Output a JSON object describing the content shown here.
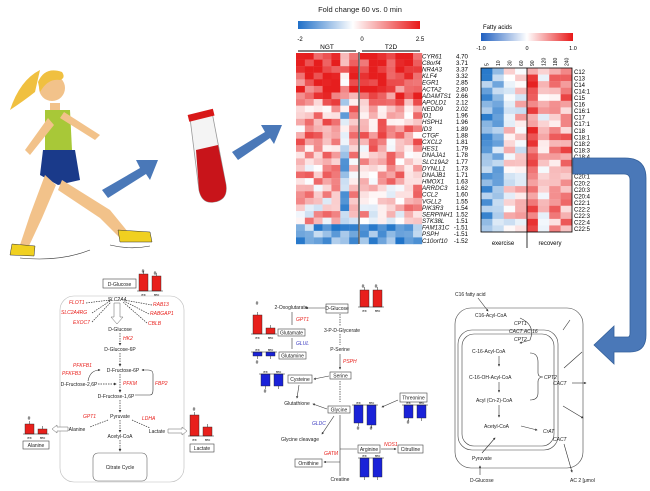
{
  "colors": {
    "up": "#e8201c",
    "down": "#2030e0",
    "arrow": "#4a78b8",
    "neutral": "#ffffff"
  },
  "gene_heatmap": {
    "title": "Fold change 60 vs. 0 min",
    "scale_labels": [
      "-2",
      "0",
      "2.5"
    ],
    "groups": [
      "NGT",
      "T2D"
    ],
    "rows": [
      {
        "gene": "CYR61",
        "fc": "4.70"
      },
      {
        "gene": "C8orf4",
        "fc": "3.71"
      },
      {
        "gene": "NR4A3",
        "fc": "3.37"
      },
      {
        "gene": "KLF4",
        "fc": "3.32"
      },
      {
        "gene": "EGR1",
        "fc": "2.85"
      },
      {
        "gene": "ACTA2",
        "fc": "2.80"
      },
      {
        "gene": "ADAMTS1",
        "fc": "2.66"
      },
      {
        "gene": "APOLD1",
        "fc": "2.12"
      },
      {
        "gene": "NEDD9",
        "fc": "2.02"
      },
      {
        "gene": "ID1",
        "fc": "1.96"
      },
      {
        "gene": "HSPH1",
        "fc": "1.96"
      },
      {
        "gene": "ID3",
        "fc": "1.89"
      },
      {
        "gene": "CTGF",
        "fc": "1.88"
      },
      {
        "gene": "CXCL2",
        "fc": "1.81"
      },
      {
        "gene": "HES1",
        "fc": "1.79"
      },
      {
        "gene": "DNAJA1",
        "fc": "1.78"
      },
      {
        "gene": "SLC19A2",
        "fc": "1.77"
      },
      {
        "gene": "DYNLL1",
        "fc": "1.73"
      },
      {
        "gene": "DNAJB1",
        "fc": "1.71"
      },
      {
        "gene": "HMOX1",
        "fc": "1.63"
      },
      {
        "gene": "ARRDC3",
        "fc": "1.62"
      },
      {
        "gene": "CCL2",
        "fc": "1.60"
      },
      {
        "gene": "VGLL2",
        "fc": "1.55"
      },
      {
        "gene": "PIK3R3",
        "fc": "1.54"
      },
      {
        "gene": "SERPINH1",
        "fc": "1.52"
      },
      {
        "gene": "STK38L",
        "fc": "1.51"
      },
      {
        "gene": "FAM131C",
        "fc": "-1.51"
      },
      {
        "gene": "PSPH",
        "fc": "-1.51"
      },
      {
        "gene": "C10orf10",
        "fc": "-1.52"
      }
    ]
  },
  "fatty_heatmap": {
    "title": "Fatty acids",
    "scale_labels": [
      "-1.0",
      "0",
      "1.0"
    ],
    "timepoints": [
      "5",
      "10",
      "30",
      "60",
      "90",
      "120",
      "180",
      "240"
    ],
    "groups": [
      "exercise",
      "recovery"
    ],
    "rows": [
      "C12",
      "C13",
      "C14",
      "C14:1",
      "C15",
      "C16",
      "C16:1",
      "C17",
      "C17:1",
      "C18",
      "C18:1",
      "C18:2",
      "C18:3",
      "C18:4",
      "",
      "C20",
      "C20:1",
      "C20:2",
      "C20:3",
      "C20:4",
      "C22:1",
      "C22:2",
      "C22:3",
      "C22:4",
      "C22:5"
    ]
  },
  "glycolysis": {
    "metabolites": {
      "glucose_box": "D-Glucose",
      "transporter": "SLC2A4",
      "glucose": "D-Glucose",
      "g6p": "D-Glucose-6P",
      "f6p": "D-Fructose-6P",
      "f26p": "D-Fructose-2,6P",
      "f16p": "D-Fructose-1,6P",
      "pyruvate": "Pyruvate",
      "alanine": "Alanine",
      "lactate": "Lactate",
      "acetyl": "Acetyl-CoA",
      "citrate": "Citrate Cycle",
      "alanine_box": "Alanine",
      "lactate_box": "Lactate"
    },
    "genes": {
      "flot1": "FLOT1",
      "slc2a4rg": "SLC2A4RG",
      "exoc7": "EXOC7",
      "rab13": "RAB13",
      "rabgap1": "RABGAP1",
      "cblb": "CBLB",
      "hk2": "HK2",
      "pfkfb1": "PFKFB1",
      "pfkfb3": "PFKFB3",
      "pfkm": "PFKM",
      "fbp2": "FBP2",
      "gpt1": "GPT1",
      "ldha": "LDHA"
    },
    "bar_labels": [
      "ex",
      "rec"
    ],
    "sig_mark": "#"
  },
  "amino": {
    "metabolites": {
      "glucose": "D-Glucose",
      "oxoglutarate": "2-Oxoglutarate",
      "glutamate": "Glutamate",
      "glutamine": "Glutamine",
      "pglycerate": "3-P-D-Glycerate",
      "pserine": "P-Serine",
      "serine": "Serine",
      "cysteine": "Cysteine",
      "glutathione": "Glutathione",
      "glycine": "Glycine",
      "threonine": "Threonine",
      "cleavage": "Glycine cleavage",
      "arginine": "Arginine",
      "citrulline": "Citrulline",
      "ornithine": "Ornithine",
      "creatine": "Creatine"
    },
    "genes": {
      "gpt1": "GPT1",
      "glul": "GLUL",
      "psph": "PSPH",
      "gldc": "GLDC",
      "gatm": "GATM",
      "nos1": "NOS1"
    }
  },
  "fao": {
    "labels": {
      "fa": "C16 fatty acid",
      "acyl": "C16-Acyl-CoA",
      "cpt1": "CPT1",
      "cact_ac": "CACT  AC 16",
      "cpt2a": "CPT2",
      "acyl2": "C-16-Acyl-CoA",
      "oh": "C-16-OH-Acyl-CoA",
      "cpt2b": "CPT2",
      "cact1": "CACT",
      "acyln": "Acyl (Cn-2)-CoA",
      "acetyl": "Acetyl-CoA",
      "crat": "CrAT",
      "cact2": "CACT",
      "pyruvate": "Pyruvate",
      "glucose": "D-Glucose",
      "ac2": "AC 2 [μmol"
    }
  }
}
